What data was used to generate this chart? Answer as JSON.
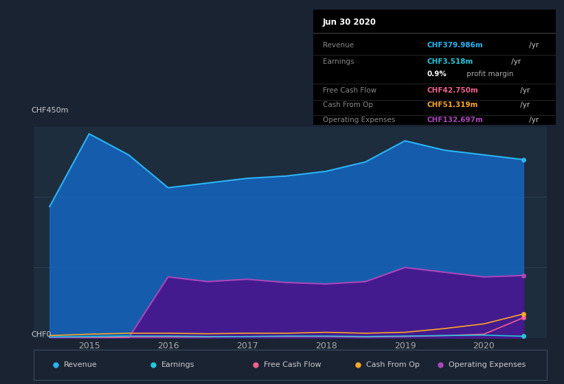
{
  "background_color": "#1a2332",
  "chart_bg_color": "#1e2d3d",
  "title": "Jun 30 2020",
  "ylabel_text": "CHF450m",
  "y0_label": "CHF0",
  "years": [
    2014.5,
    2015.0,
    2015.5,
    2016.0,
    2016.5,
    2017.0,
    2017.5,
    2018.0,
    2018.5,
    2019.0,
    2019.5,
    2020.0,
    2020.5
  ],
  "revenue": [
    280,
    435,
    390,
    320,
    330,
    340,
    345,
    355,
    375,
    420,
    400,
    390,
    380
  ],
  "earnings": [
    2,
    3,
    4,
    4,
    3,
    3,
    4,
    4,
    3,
    4,
    5,
    6,
    3.5
  ],
  "free_cash_flow": [
    -2,
    0,
    2,
    2,
    2,
    3,
    3,
    3,
    2,
    3,
    5,
    8,
    43
  ],
  "cash_from_op": [
    5,
    8,
    10,
    10,
    9,
    10,
    10,
    12,
    10,
    12,
    20,
    30,
    51
  ],
  "op_expenses": [
    0,
    0,
    0,
    130,
    120,
    125,
    118,
    115,
    120,
    150,
    140,
    130,
    133
  ],
  "revenue_color": "#29b6f6",
  "earnings_color": "#26c6da",
  "fcf_color": "#f06292",
  "cashop_color": "#ffa726",
  "opex_color": "#ab47bc",
  "revenue_fill": "#1565c0",
  "opex_fill": "#4a148c",
  "xlim": [
    2014.3,
    2020.8
  ],
  "ylim": [
    0,
    450
  ],
  "xticks": [
    2015,
    2016,
    2017,
    2018,
    2019,
    2020
  ],
  "info_box": {
    "title": "Jun 30 2020",
    "rows": [
      {
        "label": "Revenue",
        "value": "CHF379.986m",
        "value_color": "#29b6f6",
        "suffix": " /yr",
        "suffix_color": "#cccccc"
      },
      {
        "label": "Earnings",
        "value": "CHF3.518m",
        "value_color": "#26c6da",
        "suffix": " /yr",
        "suffix_color": "#cccccc"
      },
      {
        "label": "",
        "value": "0.9%",
        "value_color": "#ffffff",
        "suffix": " profit margin",
        "suffix_color": "#aaaaaa"
      },
      {
        "label": "Free Cash Flow",
        "value": "CHF42.750m",
        "value_color": "#f06292",
        "suffix": " /yr",
        "suffix_color": "#cccccc"
      },
      {
        "label": "Cash From Op",
        "value": "CHF51.319m",
        "value_color": "#ffa726",
        "suffix": " /yr",
        "suffix_color": "#cccccc"
      },
      {
        "label": "Operating Expenses",
        "value": "CHF132.697m",
        "value_color": "#ab47bc",
        "suffix": " /yr",
        "suffix_color": "#cccccc"
      }
    ]
  },
  "legend_items": [
    {
      "label": "Revenue",
      "color": "#29b6f6"
    },
    {
      "label": "Earnings",
      "color": "#26c6da"
    },
    {
      "label": "Free Cash Flow",
      "color": "#f06292"
    },
    {
      "label": "Cash From Op",
      "color": "#ffa726"
    },
    {
      "label": "Operating Expenses",
      "color": "#ab47bc"
    }
  ]
}
